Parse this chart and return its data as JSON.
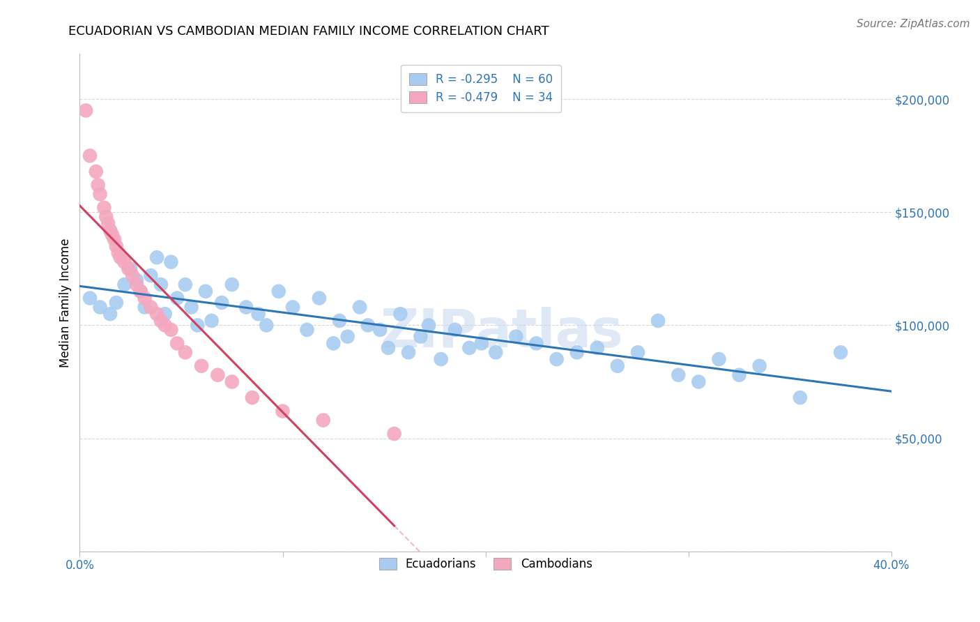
{
  "title": "ECUADORIAN VS CAMBODIAN MEDIAN FAMILY INCOME CORRELATION CHART",
  "source": "Source: ZipAtlas.com",
  "ylabel": "Median Family Income",
  "xlim": [
    0.0,
    0.4
  ],
  "ylim": [
    0,
    220000
  ],
  "yticks": [
    0,
    50000,
    100000,
    150000,
    200000
  ],
  "ytick_labels": [
    "",
    "$50,000",
    "$100,000",
    "$150,000",
    "$200,000"
  ],
  "xticks": [
    0.0,
    0.1,
    0.2,
    0.3,
    0.4
  ],
  "xtick_labels": [
    "0.0%",
    "",
    "",
    "",
    "40.0%"
  ],
  "blue_R": -0.295,
  "blue_N": 60,
  "pink_R": -0.479,
  "pink_N": 34,
  "blue_color": "#A8CCF0",
  "pink_color": "#F4A8C0",
  "blue_line_color": "#2E75B6",
  "pink_line_color": "#D04060",
  "watermark": "ZIPatlas",
  "blue_scatter_x": [
    0.005,
    0.01,
    0.015,
    0.018,
    0.022,
    0.025,
    0.028,
    0.03,
    0.032,
    0.035,
    0.038,
    0.04,
    0.042,
    0.045,
    0.048,
    0.052,
    0.055,
    0.058,
    0.062,
    0.065,
    0.07,
    0.075,
    0.082,
    0.088,
    0.092,
    0.098,
    0.105,
    0.112,
    0.118,
    0.125,
    0.128,
    0.132,
    0.138,
    0.142,
    0.148,
    0.152,
    0.158,
    0.162,
    0.168,
    0.172,
    0.178,
    0.185,
    0.192,
    0.198,
    0.205,
    0.215,
    0.225,
    0.235,
    0.245,
    0.255,
    0.265,
    0.275,
    0.285,
    0.295,
    0.305,
    0.315,
    0.325,
    0.335,
    0.355,
    0.375
  ],
  "blue_scatter_y": [
    112000,
    108000,
    105000,
    110000,
    118000,
    125000,
    120000,
    115000,
    108000,
    122000,
    130000,
    118000,
    105000,
    128000,
    112000,
    118000,
    108000,
    100000,
    115000,
    102000,
    110000,
    118000,
    108000,
    105000,
    100000,
    115000,
    108000,
    98000,
    112000,
    92000,
    102000,
    95000,
    108000,
    100000,
    98000,
    90000,
    105000,
    88000,
    95000,
    100000,
    85000,
    98000,
    90000,
    92000,
    88000,
    95000,
    92000,
    85000,
    88000,
    90000,
    82000,
    88000,
    102000,
    78000,
    75000,
    85000,
    78000,
    82000,
    68000,
    88000
  ],
  "pink_scatter_x": [
    0.003,
    0.005,
    0.008,
    0.009,
    0.01,
    0.012,
    0.013,
    0.014,
    0.015,
    0.016,
    0.017,
    0.018,
    0.019,
    0.02,
    0.022,
    0.024,
    0.026,
    0.028,
    0.03,
    0.032,
    0.035,
    0.038,
    0.04,
    0.042,
    0.045,
    0.048,
    0.052,
    0.06,
    0.068,
    0.075,
    0.085,
    0.1,
    0.12,
    0.155
  ],
  "pink_scatter_y": [
    195000,
    175000,
    168000,
    162000,
    158000,
    152000,
    148000,
    145000,
    142000,
    140000,
    138000,
    135000,
    132000,
    130000,
    128000,
    125000,
    122000,
    118000,
    115000,
    112000,
    108000,
    105000,
    102000,
    100000,
    98000,
    92000,
    88000,
    82000,
    78000,
    75000,
    68000,
    62000,
    58000,
    52000
  ]
}
